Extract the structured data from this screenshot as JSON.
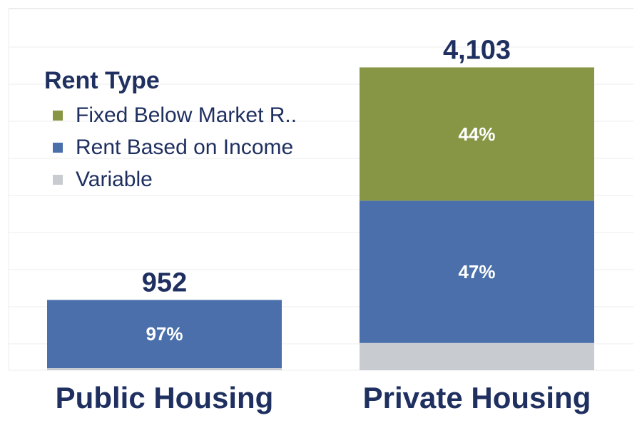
{
  "colors": {
    "text": "#1f3060",
    "grid": "#ececec",
    "fixed": "#869645",
    "income": "#4a6fab",
    "variable": "#c8ccd1"
  },
  "legend": {
    "title": "Rent Type",
    "items": [
      {
        "label": "Fixed Below Market R..",
        "color": "#869645"
      },
      {
        "label": "Rent Based on Income",
        "color": "#4a6fab"
      },
      {
        "label": "Variable",
        "color": "#c8ccd1"
      }
    ]
  },
  "chart_data": {
    "type": "bar",
    "stacked": true,
    "categories": [
      "Public Housing",
      "Private Housing"
    ],
    "totals": [
      952,
      4103
    ],
    "total_labels": [
      "952",
      "4,103"
    ],
    "series": [
      {
        "name": "Variable",
        "color": "#c8ccd1",
        "values": [
          29,
          369
        ],
        "labels": [
          "",
          ""
        ]
      },
      {
        "name": "Rent Based on Income",
        "color": "#4a6fab",
        "values": [
          923,
          1928
        ],
        "labels": [
          "97%",
          "47%"
        ]
      },
      {
        "name": "Fixed Below Market R..",
        "color": "#869645",
        "values": [
          0,
          1806
        ],
        "labels": [
          "",
          "44%"
        ]
      }
    ],
    "ylim": [
      0,
      4900
    ],
    "grid": true,
    "legend_position": "top-left",
    "xlabel": "",
    "ylabel": ""
  }
}
